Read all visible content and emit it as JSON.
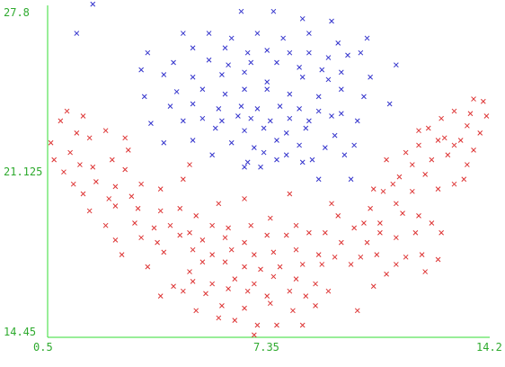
{
  "chart_data": {
    "type": "scatter",
    "title": "",
    "xlabel": "",
    "ylabel": "",
    "xlim": [
      0.5,
      14.2
    ],
    "ylim": [
      14.45,
      27.8
    ],
    "x_ticks": [
      0.5,
      7.35,
      14.2
    ],
    "y_ticks": [
      14.45,
      21.125,
      27.8
    ],
    "x_tick_labels": [
      "0.5",
      "7.35",
      "14.2"
    ],
    "y_tick_labels": [
      "14.45",
      "21.125",
      "27.8"
    ],
    "grid": false,
    "legend": "none",
    "marker": "x",
    "colors": [
      "#3333cc",
      "#dd3333"
    ],
    "series": [
      {
        "points": [
          [
            1.9,
            28.0
          ],
          [
            1.4,
            26.8
          ],
          [
            6.5,
            27.7
          ],
          [
            7.5,
            27.7
          ],
          [
            8.4,
            27.4
          ],
          [
            9.3,
            27.3
          ],
          [
            4.7,
            26.8
          ],
          [
            5.5,
            26.8
          ],
          [
            6.2,
            26.6
          ],
          [
            7.0,
            26.8
          ],
          [
            7.8,
            26.6
          ],
          [
            8.6,
            26.8
          ],
          [
            9.5,
            26.4
          ],
          [
            10.4,
            26.6
          ],
          [
            3.6,
            26.0
          ],
          [
            5.0,
            26.2
          ],
          [
            6.0,
            26.2
          ],
          [
            6.7,
            26.0
          ],
          [
            7.3,
            26.1
          ],
          [
            8.0,
            26.0
          ],
          [
            8.6,
            26.0
          ],
          [
            9.2,
            25.8
          ],
          [
            9.8,
            25.9
          ],
          [
            10.2,
            26.0
          ],
          [
            3.4,
            25.3
          ],
          [
            4.4,
            25.6
          ],
          [
            5.5,
            25.7
          ],
          [
            6.1,
            25.5
          ],
          [
            6.8,
            25.6
          ],
          [
            7.6,
            25.6
          ],
          [
            8.3,
            25.4
          ],
          [
            9.0,
            25.3
          ],
          [
            9.6,
            25.2
          ],
          [
            11.3,
            25.5
          ],
          [
            4.1,
            25.1
          ],
          [
            5.0,
            25.0
          ],
          [
            5.9,
            25.1
          ],
          [
            6.6,
            25.2
          ],
          [
            7.3,
            24.8
          ],
          [
            8.4,
            25.0
          ],
          [
            9.2,
            24.9
          ],
          [
            10.5,
            25.0
          ],
          [
            3.5,
            24.2
          ],
          [
            4.5,
            24.4
          ],
          [
            5.3,
            24.5
          ],
          [
            6.0,
            24.3
          ],
          [
            6.6,
            24.5
          ],
          [
            7.3,
            24.5
          ],
          [
            8.0,
            24.3
          ],
          [
            8.9,
            24.2
          ],
          [
            9.6,
            24.5
          ],
          [
            10.3,
            24.2
          ],
          [
            4.3,
            23.8
          ],
          [
            5.0,
            23.9
          ],
          [
            5.8,
            23.7
          ],
          [
            6.5,
            23.8
          ],
          [
            7.0,
            23.7
          ],
          [
            7.7,
            23.8
          ],
          [
            8.3,
            23.7
          ],
          [
            8.9,
            23.6
          ],
          [
            9.6,
            23.5
          ],
          [
            11.1,
            23.9
          ],
          [
            3.7,
            23.1
          ],
          [
            4.7,
            23.2
          ],
          [
            5.3,
            23.3
          ],
          [
            5.9,
            23.2
          ],
          [
            6.4,
            23.4
          ],
          [
            6.8,
            23.3
          ],
          [
            7.4,
            23.2
          ],
          [
            8.0,
            23.3
          ],
          [
            8.6,
            23.2
          ],
          [
            9.3,
            23.4
          ],
          [
            10.1,
            23.2
          ],
          [
            5.7,
            22.9
          ],
          [
            6.6,
            22.8
          ],
          [
            7.2,
            22.9
          ],
          [
            7.9,
            22.7
          ],
          [
            8.5,
            22.9
          ],
          [
            9.4,
            22.6
          ],
          [
            4.1,
            22.3
          ],
          [
            5.0,
            22.4
          ],
          [
            6.2,
            22.3
          ],
          [
            6.9,
            22.1
          ],
          [
            7.6,
            22.4
          ],
          [
            8.3,
            22.2
          ],
          [
            9.1,
            22.1
          ],
          [
            10.0,
            22.2
          ],
          [
            5.6,
            21.8
          ],
          [
            6.7,
            21.5
          ],
          [
            7.2,
            21.9
          ],
          [
            7.9,
            21.8
          ],
          [
            8.7,
            21.6
          ],
          [
            9.7,
            21.8
          ],
          [
            6.6,
            21.3
          ],
          [
            7.1,
            21.3
          ],
          [
            7.6,
            21.6
          ],
          [
            8.4,
            21.5
          ],
          [
            8.9,
            20.8
          ],
          [
            9.9,
            20.8
          ]
        ]
      },
      {
        "points": [
          [
            0.6,
            22.3
          ],
          [
            0.9,
            23.2
          ],
          [
            1.1,
            23.6
          ],
          [
            1.6,
            23.4
          ],
          [
            1.8,
            22.5
          ],
          [
            1.4,
            22.7
          ],
          [
            2.3,
            22.8
          ],
          [
            2.9,
            22.5
          ],
          [
            3.0,
            22.0
          ],
          [
            0.7,
            21.6
          ],
          [
            1.2,
            21.9
          ],
          [
            1.5,
            21.4
          ],
          [
            1.9,
            21.3
          ],
          [
            2.5,
            21.6
          ],
          [
            2.9,
            21.2
          ],
          [
            1.0,
            21.1
          ],
          [
            1.3,
            20.6
          ],
          [
            2.0,
            20.7
          ],
          [
            2.6,
            20.5
          ],
          [
            3.4,
            20.6
          ],
          [
            4.0,
            20.4
          ],
          [
            1.6,
            20.2
          ],
          [
            2.4,
            20.0
          ],
          [
            3.1,
            20.1
          ],
          [
            4.9,
            21.4
          ],
          [
            4.7,
            20.8
          ],
          [
            1.8,
            19.5
          ],
          [
            2.6,
            19.7
          ],
          [
            3.3,
            19.6
          ],
          [
            4.0,
            19.5
          ],
          [
            4.6,
            19.6
          ],
          [
            5.1,
            19.3
          ],
          [
            5.8,
            19.8
          ],
          [
            6.6,
            20.0
          ],
          [
            8.0,
            20.2
          ],
          [
            2.3,
            18.9
          ],
          [
            3.2,
            19.0
          ],
          [
            3.8,
            18.8
          ],
          [
            4.3,
            18.9
          ],
          [
            4.9,
            18.6
          ],
          [
            5.6,
            18.9
          ],
          [
            6.1,
            18.8
          ],
          [
            6.8,
            18.9
          ],
          [
            7.4,
            19.2
          ],
          [
            8.2,
            18.9
          ],
          [
            2.6,
            18.3
          ],
          [
            3.4,
            18.4
          ],
          [
            3.9,
            18.2
          ],
          [
            4.6,
            18.5
          ],
          [
            5.3,
            18.3
          ],
          [
            6.0,
            18.4
          ],
          [
            6.6,
            18.2
          ],
          [
            7.3,
            18.5
          ],
          [
            7.9,
            18.5
          ],
          [
            8.6,
            18.6
          ],
          [
            2.8,
            17.7
          ],
          [
            4.1,
            17.8
          ],
          [
            5.0,
            17.9
          ],
          [
            5.6,
            17.7
          ],
          [
            6.2,
            17.9
          ],
          [
            6.9,
            17.7
          ],
          [
            7.5,
            17.8
          ],
          [
            8.2,
            17.9
          ],
          [
            8.9,
            17.7
          ],
          [
            3.6,
            17.2
          ],
          [
            4.9,
            17.0
          ],
          [
            5.3,
            17.4
          ],
          [
            6.0,
            17.4
          ],
          [
            6.6,
            17.2
          ],
          [
            7.1,
            17.1
          ],
          [
            7.7,
            17.2
          ],
          [
            8.4,
            17.3
          ],
          [
            9.0,
            17.3
          ],
          [
            4.4,
            16.4
          ],
          [
            5.0,
            16.6
          ],
          [
            5.6,
            16.5
          ],
          [
            6.3,
            16.7
          ],
          [
            6.9,
            16.5
          ],
          [
            7.5,
            16.8
          ],
          [
            8.2,
            16.7
          ],
          [
            8.8,
            16.5
          ],
          [
            4.0,
            16.0
          ],
          [
            4.7,
            16.2
          ],
          [
            5.4,
            16.1
          ],
          [
            6.1,
            16.3
          ],
          [
            6.7,
            16.2
          ],
          [
            7.3,
            16.0
          ],
          [
            8.0,
            16.2
          ],
          [
            8.5,
            16.0
          ],
          [
            9.2,
            16.2
          ],
          [
            5.1,
            15.4
          ],
          [
            5.9,
            15.6
          ],
          [
            6.6,
            15.5
          ],
          [
            7.4,
            15.7
          ],
          [
            8.1,
            15.4
          ],
          [
            8.8,
            15.6
          ],
          [
            5.8,
            15.1
          ],
          [
            6.3,
            15.0
          ],
          [
            7.0,
            14.8
          ],
          [
            7.6,
            14.8
          ],
          [
            8.4,
            14.8
          ],
          [
            6.9,
            14.4
          ],
          [
            9.3,
            19.8
          ],
          [
            9.5,
            19.3
          ],
          [
            9.1,
            18.6
          ],
          [
            9.6,
            18.2
          ],
          [
            9.4,
            17.6
          ],
          [
            9.9,
            17.3
          ],
          [
            10.3,
            19.0
          ],
          [
            10.0,
            18.8
          ],
          [
            10.5,
            19.6
          ],
          [
            10.9,
            20.3
          ],
          [
            10.8,
            19.0
          ],
          [
            11.3,
            19.8
          ],
          [
            11.8,
            20.3
          ],
          [
            11.5,
            19.4
          ],
          [
            12.0,
            19.3
          ],
          [
            10.4,
            18.2
          ],
          [
            10.8,
            18.6
          ],
          [
            11.3,
            18.4
          ],
          [
            11.9,
            18.6
          ],
          [
            12.4,
            19.0
          ],
          [
            12.7,
            18.6
          ],
          [
            10.2,
            17.6
          ],
          [
            10.7,
            17.7
          ],
          [
            11.6,
            17.6
          ],
          [
            12.1,
            17.7
          ],
          [
            12.6,
            17.5
          ],
          [
            11.0,
            16.9
          ],
          [
            11.3,
            17.3
          ],
          [
            12.2,
            17.0
          ],
          [
            10.6,
            16.4
          ],
          [
            10.1,
            15.4
          ],
          [
            11.2,
            20.6
          ],
          [
            11.8,
            21.4
          ],
          [
            12.2,
            21.0
          ],
          [
            12.6,
            20.4
          ],
          [
            13.1,
            20.6
          ],
          [
            13.4,
            20.8
          ],
          [
            12.4,
            21.6
          ],
          [
            12.9,
            21.8
          ],
          [
            13.5,
            21.4
          ],
          [
            13.1,
            22.2
          ],
          [
            13.7,
            22.0
          ],
          [
            12.6,
            22.4
          ],
          [
            12.0,
            22.2
          ],
          [
            12.3,
            22.9
          ],
          [
            12.8,
            22.5
          ],
          [
            13.3,
            22.4
          ],
          [
            13.5,
            23.0
          ],
          [
            12.7,
            23.3
          ],
          [
            13.1,
            23.6
          ],
          [
            13.6,
            23.5
          ],
          [
            13.9,
            22.7
          ],
          [
            14.1,
            23.4
          ],
          [
            13.7,
            24.1
          ],
          [
            14.0,
            24.0
          ],
          [
            11.0,
            21.6
          ],
          [
            11.6,
            21.9
          ],
          [
            12.0,
            22.8
          ],
          [
            11.4,
            20.9
          ],
          [
            10.6,
            20.4
          ]
        ]
      }
    ]
  }
}
